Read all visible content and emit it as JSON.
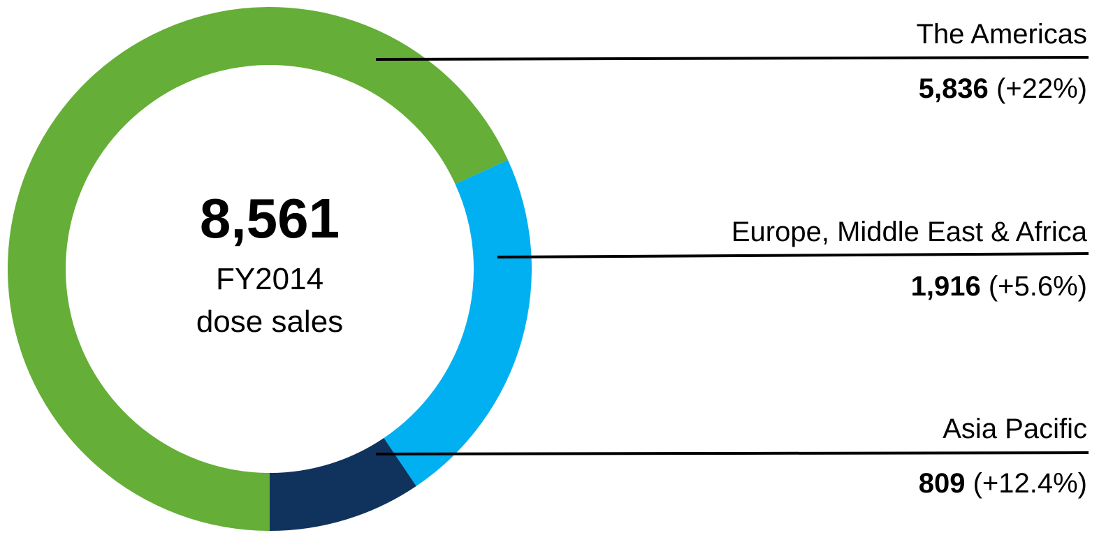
{
  "chart_data": {
    "type": "donut",
    "categories": [
      "The Americas",
      "Europe, Middle East & Africa",
      "Asia Pacific"
    ],
    "values": [
      5836,
      1916,
      809
    ],
    "value_labels": [
      "5,836",
      "1,916",
      "809"
    ],
    "changes": [
      "(+22%)",
      "(+5.6%)",
      "(+12.4%)"
    ],
    "colors": [
      "#65ae37",
      "#00b0f0",
      "#10335e"
    ],
    "total": {
      "value": 8561,
      "label": "8,561"
    },
    "center_text": [
      "FY2014",
      "dose sales"
    ]
  }
}
